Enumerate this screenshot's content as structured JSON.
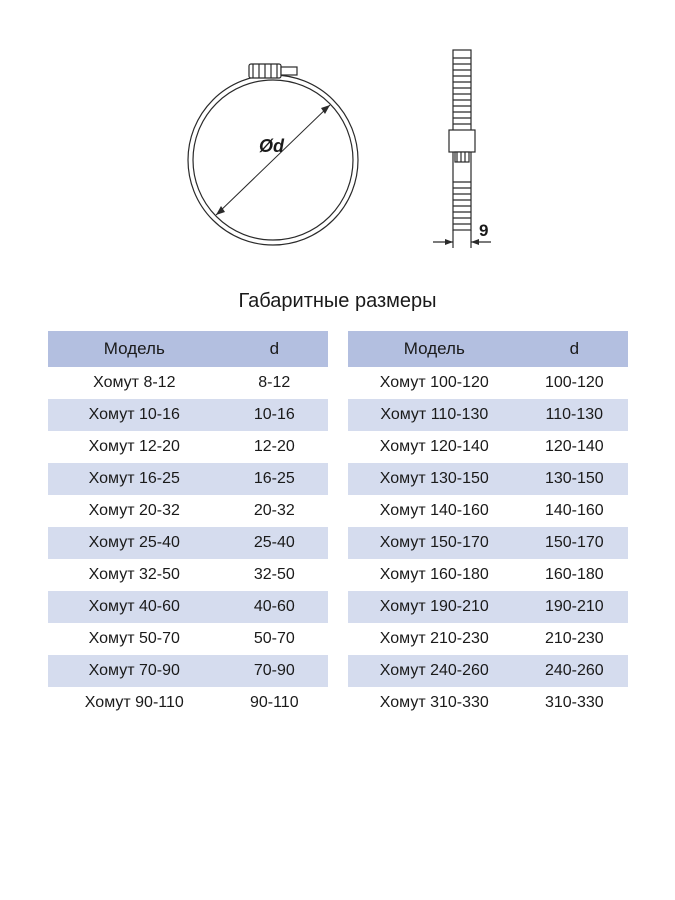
{
  "diagram": {
    "diameter_label": "Ød",
    "width_label": "9",
    "stroke_color": "#2a2a2a",
    "circle_outer_r": 85,
    "circle_inner_r": 80,
    "side_height": 170,
    "side_width": 18
  },
  "title": "Габаритные размеры",
  "table": {
    "type": "table",
    "header_bg": "#b3bfe0",
    "alt_row_bg": "#d5dcee",
    "row_bg": "#ffffff",
    "font_size": 16,
    "header_font_size": 17,
    "text_color": "#1a1a1a",
    "columns": [
      "Модель",
      "d"
    ],
    "left_rows": [
      [
        "Хомут 8-12",
        "8-12"
      ],
      [
        "Хомут 10-16",
        "10-16"
      ],
      [
        "Хомут 12-20",
        "12-20"
      ],
      [
        "Хомут 16-25",
        "16-25"
      ],
      [
        "Хомут 20-32",
        "20-32"
      ],
      [
        "Хомут 25-40",
        "25-40"
      ],
      [
        "Хомут 32-50",
        "32-50"
      ],
      [
        "Хомут 40-60",
        "40-60"
      ],
      [
        "Хомут 50-70",
        "50-70"
      ],
      [
        "Хомут 70-90",
        "70-90"
      ],
      [
        "Хомут 90-110",
        "90-110"
      ]
    ],
    "right_rows": [
      [
        "Хомут 100-120",
        "100-120"
      ],
      [
        "Хомут 110-130",
        "110-130"
      ],
      [
        "Хомут 120-140",
        "120-140"
      ],
      [
        "Хомут 130-150",
        "130-150"
      ],
      [
        "Хомут 140-160",
        "140-160"
      ],
      [
        "Хомут 150-170",
        "150-170"
      ],
      [
        "Хомут 160-180",
        "160-180"
      ],
      [
        "Хомут 190-210",
        "190-210"
      ],
      [
        "Хомут 210-230",
        "210-230"
      ],
      [
        "Хомут 240-260",
        "240-260"
      ],
      [
        "Хомут 310-330",
        "310-330"
      ]
    ]
  }
}
